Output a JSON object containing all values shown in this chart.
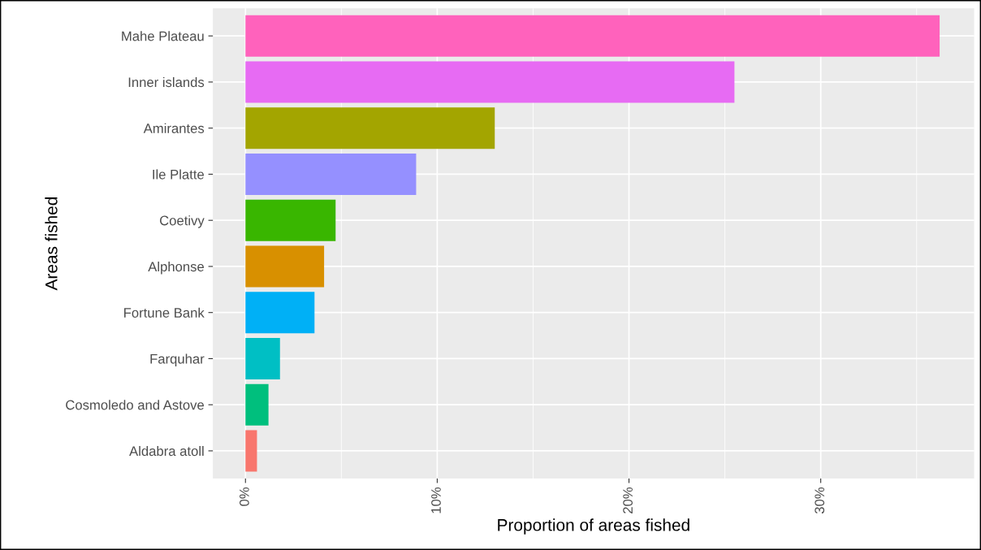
{
  "chart_data": {
    "type": "bar",
    "orientation": "horizontal",
    "xlabel": "Proportion of areas fished",
    "ylabel": "Areas fished",
    "categories": [
      "Mahe Plateau",
      "Inner islands",
      "Amirantes",
      "Ile Platte",
      "Coetivy",
      "Alphonse",
      "Fortune Bank",
      "Farquhar",
      "Cosmoledo and Astove",
      "Aldabra atoll"
    ],
    "values": [
      36.2,
      25.5,
      13.0,
      8.9,
      4.7,
      4.1,
      3.6,
      1.8,
      1.2,
      0.6
    ],
    "colors": [
      "#ff62bc",
      "#e76bf3",
      "#a3a500",
      "#9590ff",
      "#39b600",
      "#d89000",
      "#00b0f6",
      "#00bfc4",
      "#00bf7d",
      "#f8766d"
    ],
    "xlim": [
      -1.7,
      38.0
    ],
    "xticks": [
      {
        "value": 0,
        "label": "0%"
      },
      {
        "value": 10,
        "label": "10%"
      },
      {
        "value": 20,
        "label": "20%"
      },
      {
        "value": 30,
        "label": "30%"
      }
    ],
    "grid": true,
    "legend": false
  }
}
